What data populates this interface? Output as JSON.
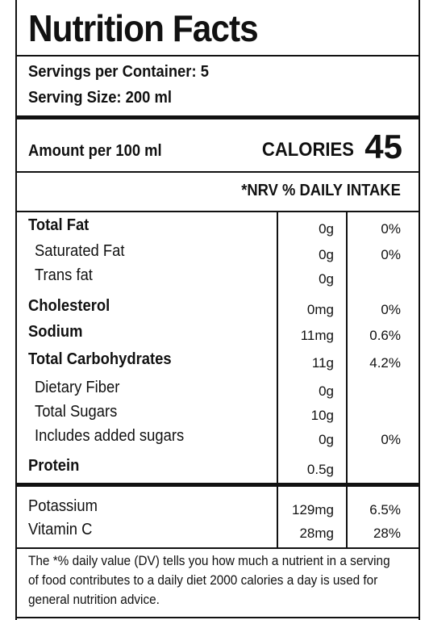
{
  "title": "Nutrition Facts",
  "servings_per_container": "Servings per Container: 5",
  "serving_size": "Serving Size: 200 ml",
  "amount_per": "Amount per 100 ml",
  "calories_label": "CALORIES",
  "calories_value": "45",
  "nrv_header": "*NRV % DAILY INTAKE",
  "nutrients": [
    {
      "name": "Total Fat",
      "amount": "0g",
      "pct": "0%"
    },
    {
      "name": "Saturated Fat",
      "amount": "0g",
      "pct": "0%"
    },
    {
      "name": "Trans fat",
      "amount": "0g",
      "pct": ""
    },
    {
      "name": "Cholesterol",
      "amount": "0mg",
      "pct": "0%"
    },
    {
      "name": "Sodium",
      "amount": "11mg",
      "pct": "0.6%"
    },
    {
      "name": "Total Carbohydrates",
      "amount": "11g",
      "pct": "4.2%"
    },
    {
      "name": "Dietary Fiber",
      "amount": "0g",
      "pct": ""
    },
    {
      "name": "Total Sugars",
      "amount": "10g",
      "pct": ""
    },
    {
      "name": "Includes added sugars",
      "amount": "0g",
      "pct": "0%"
    },
    {
      "name": "Protein",
      "amount": "0.5g",
      "pct": ""
    }
  ],
  "minerals": [
    {
      "name": "Potassium",
      "amount": "129mg",
      "pct": "6.5%"
    },
    {
      "name": "Vitamin C",
      "amount": "28mg",
      "pct": "28%"
    }
  ],
  "footnote": "The *% daily value (DV) tells you how much a nutrient in a serving of food contributes to a daily diet 2000 calories a day is used for general nutrition advice."
}
